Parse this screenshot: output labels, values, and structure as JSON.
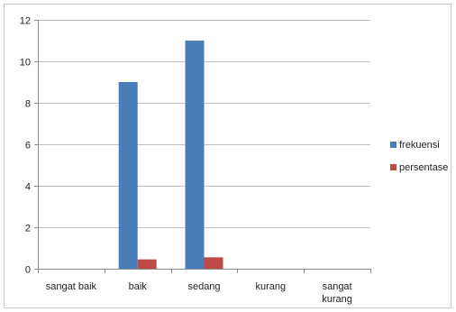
{
  "chart_data": {
    "type": "bar",
    "categories": [
      [
        "sangat baik"
      ],
      [
        "baik"
      ],
      [
        "sedang"
      ],
      [
        "kurang"
      ],
      [
        "sangat",
        "kurang"
      ]
    ],
    "series": [
      {
        "name": "frekuensi",
        "values": [
          0,
          9,
          11,
          0,
          0
        ],
        "color": "#4a7ebb"
      },
      {
        "name": "persentase",
        "values": [
          0,
          0.45,
          0.55,
          0,
          0
        ],
        "color": "#be4b48"
      }
    ],
    "ylim": [
      0,
      12
    ],
    "yticks": [
      0,
      2,
      4,
      6,
      8,
      10,
      12
    ],
    "grid": true,
    "legend": "right"
  }
}
